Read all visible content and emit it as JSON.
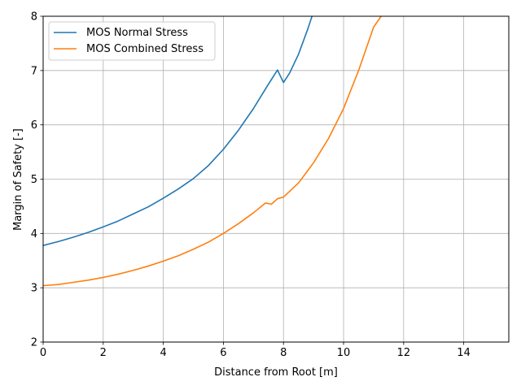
{
  "chart_data": {
    "type": "line",
    "title": "",
    "xlabel": "Distance from Root [m]",
    "ylabel": "Margin of Safety [-]",
    "xlim": [
      0,
      15.5
    ],
    "ylim": [
      2,
      8
    ],
    "x_ticks": [
      0,
      2,
      4,
      6,
      8,
      10,
      12,
      14
    ],
    "y_ticks": [
      2,
      3,
      4,
      5,
      6,
      7,
      8
    ],
    "x_tick_labels": [
      "0",
      "2",
      "4",
      "6",
      "8",
      "10",
      "12",
      "14"
    ],
    "y_tick_labels": [
      "2",
      "3",
      "4",
      "5",
      "6",
      "7",
      "8"
    ],
    "grid": true,
    "legend_position": "top-left",
    "series": [
      {
        "name": "MOS Normal Stress",
        "color": "#1f77b4",
        "x": [
          0,
          0.5,
          1,
          1.5,
          2,
          2.5,
          3,
          3.5,
          4,
          4.5,
          5,
          5.5,
          6,
          6.5,
          7,
          7.5,
          7.8,
          8.0,
          8.2,
          8.5,
          8.8,
          8.95
        ],
        "y": [
          3.78,
          3.85,
          3.93,
          4.02,
          4.12,
          4.23,
          4.36,
          4.49,
          4.65,
          4.82,
          5.01,
          5.25,
          5.55,
          5.9,
          6.3,
          6.75,
          7.01,
          6.78,
          6.95,
          7.3,
          7.75,
          8.0
        ]
      },
      {
        "name": "MOS Combined Stress",
        "color": "#ff7f0e",
        "x": [
          0,
          0.5,
          1,
          1.5,
          2,
          2.5,
          3,
          3.5,
          4,
          4.5,
          5,
          5.5,
          6,
          6.5,
          7,
          7.4,
          7.6,
          7.8,
          8.0,
          8.5,
          9,
          9.5,
          10,
          10.5,
          11,
          11.25
        ],
        "y": [
          3.04,
          3.06,
          3.1,
          3.14,
          3.19,
          3.25,
          3.32,
          3.4,
          3.49,
          3.59,
          3.71,
          3.84,
          4.0,
          4.18,
          4.38,
          4.56,
          4.54,
          4.64,
          4.67,
          4.93,
          5.3,
          5.75,
          6.3,
          7.0,
          7.8,
          8.0
        ]
      }
    ]
  }
}
